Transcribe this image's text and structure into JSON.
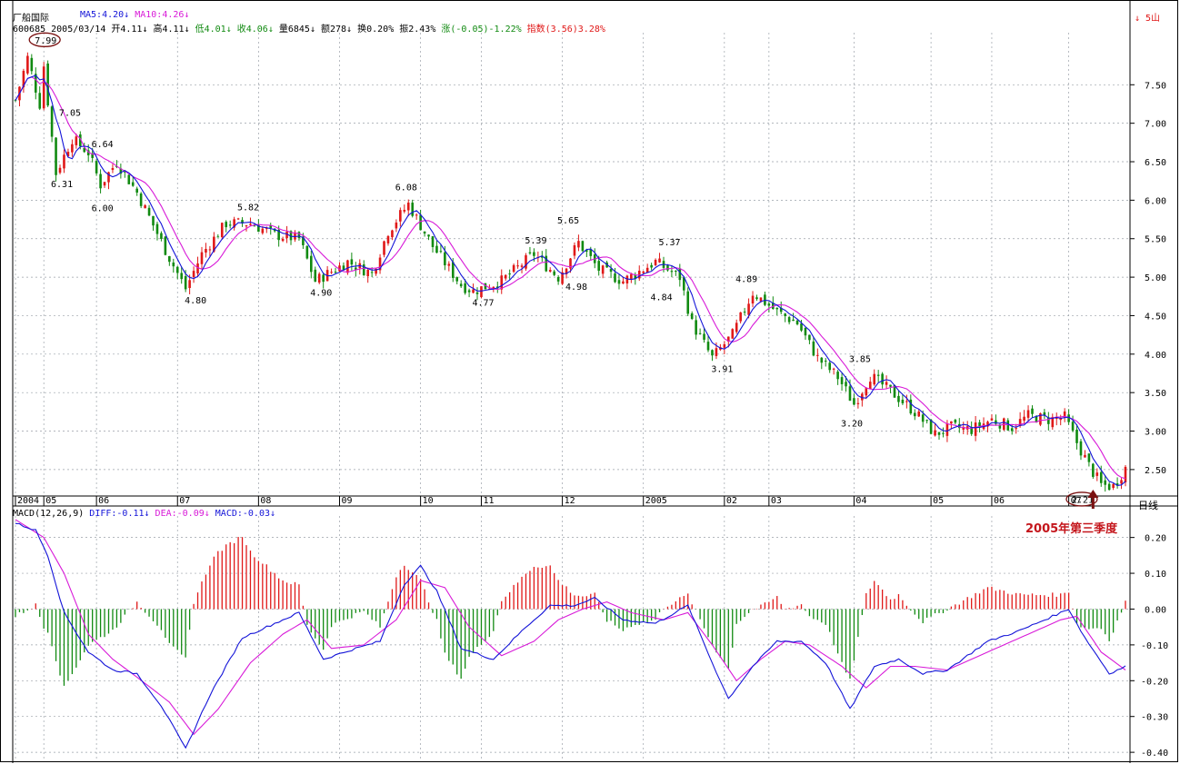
{
  "header": {
    "title": "厂船国际",
    "ma_line": [
      {
        "text": "MA5:4.20↓",
        "color": "#1414d8"
      },
      {
        "text": "MA10:4.26↓",
        "color": "#d81ad8"
      }
    ],
    "info_line": [
      {
        "text": "600685 2005/03/14",
        "color": "#000000"
      },
      {
        "text": "开4.11↓",
        "color": "#000000"
      },
      {
        "text": "高4.11↓",
        "color": "#000000"
      },
      {
        "text": "低4.01↓",
        "color": "#118a11"
      },
      {
        "text": "收4.06↓",
        "color": "#118a11"
      },
      {
        "text": "量6845↓",
        "color": "#000000"
      },
      {
        "text": "额278↓",
        "color": "#000000"
      },
      {
        "text": "换0.20%",
        "color": "#000000"
      },
      {
        "text": "振2.43%",
        "color": "#000000"
      },
      {
        "text": "涨(-0.05)-1.22%",
        "color": "#118a11"
      },
      {
        "text": "指数(3.56)3.28%",
        "color": "#e01818"
      }
    ],
    "corner_label": "↓ 5山"
  },
  "macd_header": [
    {
      "text": "MACD(12,26,9)",
      "color": "#000000"
    },
    {
      "text": "DIFF:-0.11↓",
      "color": "#1414d8"
    },
    {
      "text": "DEA:-0.09↓",
      "color": "#d81ad8"
    },
    {
      "text": "MACD:-0.03↓",
      "color": "#1414d8"
    }
  ],
  "annotation": "2005年第三季度",
  "period_label": "日线",
  "colors": {
    "up": "#e01818",
    "down": "#118a11",
    "ma5": "#1414d8",
    "ma10": "#d81ad8",
    "diff": "#1414d8",
    "dea": "#d81ad8",
    "circle": "#7a1010",
    "arrow": "#7a1010",
    "grid": "#9aa0a8"
  },
  "chart_data": [
    {
      "type": "candlestick",
      "y_ticks": [
        "7.50",
        "7.00",
        "6.50",
        "6.00",
        "5.50",
        "5.00",
        "4.50",
        "4.00",
        "3.50",
        "3.00",
        "2.50"
      ],
      "ylim": [
        2.18,
        8.2
      ],
      "x_ticks": [
        {
          "label": "2004",
          "t": 0
        },
        {
          "label": "05",
          "t": 7
        },
        {
          "label": "06",
          "t": 20
        },
        {
          "label": "07",
          "t": 40
        },
        {
          "label": "08",
          "t": 60
        },
        {
          "label": "09",
          "t": 80
        },
        {
          "label": "10",
          "t": 100
        },
        {
          "label": "11",
          "t": 115
        },
        {
          "label": "12",
          "t": 135
        },
        {
          "label": "2005",
          "t": 155
        },
        {
          "label": "02",
          "t": 175
        },
        {
          "label": "03",
          "t": 186
        },
        {
          "label": "04",
          "t": 207
        },
        {
          "label": "05",
          "t": 226
        },
        {
          "label": "06",
          "t": 241
        },
        {
          "label": "07",
          "t": 260
        }
      ],
      "x_range": [
        0,
        274
      ],
      "price_path": [
        [
          0,
          7.3
        ],
        [
          3,
          7.85
        ],
        [
          6,
          7.25
        ],
        [
          7,
          7.75
        ],
        [
          10,
          6.35
        ],
        [
          14,
          6.8
        ],
        [
          18,
          6.62
        ],
        [
          21,
          6.2
        ],
        [
          25,
          6.5
        ],
        [
          30,
          6.1
        ],
        [
          38,
          5.25
        ],
        [
          42,
          4.85
        ],
        [
          46,
          5.3
        ],
        [
          52,
          5.7
        ],
        [
          58,
          5.7
        ],
        [
          64,
          5.55
        ],
        [
          70,
          5.5
        ],
        [
          74,
          4.95
        ],
        [
          82,
          5.2
        ],
        [
          88,
          5.05
        ],
        [
          92,
          5.6
        ],
        [
          97,
          5.95
        ],
        [
          103,
          5.4
        ],
        [
          110,
          4.9
        ],
        [
          113,
          4.82
        ],
        [
          120,
          4.95
        ],
        [
          128,
          5.3
        ],
        [
          134,
          5.0
        ],
        [
          139,
          5.45
        ],
        [
          144,
          5.1
        ],
        [
          150,
          4.95
        ],
        [
          158,
          5.2
        ],
        [
          164,
          5.0
        ],
        [
          167,
          4.4
        ],
        [
          172,
          3.95
        ],
        [
          177,
          4.25
        ],
        [
          182,
          4.8
        ],
        [
          188,
          4.55
        ],
        [
          193,
          4.4
        ],
        [
          198,
          3.95
        ],
        [
          203,
          3.7
        ],
        [
          207,
          3.35
        ],
        [
          211,
          3.72
        ],
        [
          216,
          3.52
        ],
        [
          222,
          3.25
        ],
        [
          227,
          2.96
        ],
        [
          231,
          3.05
        ],
        [
          236,
          3.02
        ],
        [
          241,
          3.15
        ],
        [
          246,
          3.05
        ],
        [
          250,
          3.2
        ],
        [
          255,
          3.15
        ],
        [
          259,
          3.18
        ],
        [
          262,
          2.85
        ],
        [
          265,
          2.55
        ],
        [
          268,
          2.3
        ],
        [
          271,
          2.28
        ],
        [
          274,
          2.52
        ]
      ],
      "price_labels": [
        {
          "text": "7.99",
          "t": 7,
          "price": 7.99,
          "circled": true
        },
        {
          "text": "7.05",
          "t": 13,
          "price": 7.05
        },
        {
          "text": "6.64",
          "t": 21,
          "price": 6.64
        },
        {
          "text": "6.31",
          "t": 11,
          "price": 6.31,
          "below": true
        },
        {
          "text": "6.00",
          "t": 21,
          "price": 6.0,
          "below": true
        },
        {
          "text": "4.80",
          "t": 44,
          "price": 4.8,
          "below": true
        },
        {
          "text": "5.82",
          "t": 57,
          "price": 5.82
        },
        {
          "text": "4.90",
          "t": 75,
          "price": 4.9,
          "below": true
        },
        {
          "text": "6.08",
          "t": 96,
          "price": 6.08
        },
        {
          "text": "4.77",
          "t": 115,
          "price": 4.77,
          "below": true
        },
        {
          "text": "5.39",
          "t": 128,
          "price": 5.39
        },
        {
          "text": "5.65",
          "t": 136,
          "price": 5.65
        },
        {
          "text": "4.98",
          "t": 138,
          "price": 4.98,
          "below": true
        },
        {
          "text": "5.37",
          "t": 161,
          "price": 5.37
        },
        {
          "text": "4.84",
          "t": 159,
          "price": 4.84,
          "below": true
        },
        {
          "text": "4.89",
          "t": 180,
          "price": 4.89
        },
        {
          "text": "3.91",
          "t": 174,
          "price": 3.91,
          "below": true
        },
        {
          "text": "3.85",
          "t": 208,
          "price": 3.85
        },
        {
          "text": "3.20",
          "t": 206,
          "price": 3.2,
          "below": true
        },
        {
          "text": "2.21",
          "t": 263,
          "price": 2.21,
          "below": true,
          "circled": true
        }
      ]
    },
    {
      "type": "macd",
      "y_ticks": [
        "0.20",
        "0.10",
        "0.00",
        "-0.10",
        "-0.20",
        "-0.30",
        "-0.40"
      ],
      "ylim": [
        -0.42,
        0.26
      ],
      "diff": [
        [
          0,
          0.24
        ],
        [
          5,
          0.22
        ],
        [
          8,
          0.15
        ],
        [
          12,
          -0.01
        ],
        [
          18,
          -0.12
        ],
        [
          24,
          -0.17
        ],
        [
          30,
          -0.18
        ],
        [
          36,
          -0.27
        ],
        [
          42,
          -0.39
        ],
        [
          48,
          -0.24
        ],
        [
          56,
          -0.08
        ],
        [
          64,
          -0.04
        ],
        [
          70,
          -0.01
        ],
        [
          76,
          -0.14
        ],
        [
          84,
          -0.11
        ],
        [
          90,
          -0.09
        ],
        [
          96,
          0.07
        ],
        [
          100,
          0.12
        ],
        [
          104,
          0.05
        ],
        [
          110,
          -0.11
        ],
        [
          118,
          -0.14
        ],
        [
          126,
          -0.05
        ],
        [
          132,
          0.01
        ],
        [
          138,
          0.01
        ],
        [
          143,
          0.03
        ],
        [
          150,
          -0.03
        ],
        [
          158,
          -0.04
        ],
        [
          166,
          0.01
        ],
        [
          172,
          -0.15
        ],
        [
          176,
          -0.25
        ],
        [
          182,
          -0.16
        ],
        [
          188,
          -0.09
        ],
        [
          194,
          -0.09
        ],
        [
          200,
          -0.15
        ],
        [
          206,
          -0.28
        ],
        [
          212,
          -0.16
        ],
        [
          218,
          -0.14
        ],
        [
          224,
          -0.18
        ],
        [
          230,
          -0.17
        ],
        [
          240,
          -0.09
        ],
        [
          248,
          -0.06
        ],
        [
          256,
          -0.02
        ],
        [
          260,
          0.0
        ],
        [
          264,
          -0.08
        ],
        [
          270,
          -0.18
        ],
        [
          274,
          -0.16
        ]
      ],
      "dea": [
        [
          0,
          0.25
        ],
        [
          7,
          0.2
        ],
        [
          12,
          0.1
        ],
        [
          18,
          -0.07
        ],
        [
          24,
          -0.14
        ],
        [
          30,
          -0.19
        ],
        [
          38,
          -0.26
        ],
        [
          44,
          -0.35
        ],
        [
          50,
          -0.28
        ],
        [
          58,
          -0.15
        ],
        [
          66,
          -0.07
        ],
        [
          72,
          -0.03
        ],
        [
          78,
          -0.11
        ],
        [
          86,
          -0.1
        ],
        [
          94,
          -0.03
        ],
        [
          100,
          0.08
        ],
        [
          106,
          0.06
        ],
        [
          112,
          -0.05
        ],
        [
          120,
          -0.13
        ],
        [
          128,
          -0.09
        ],
        [
          134,
          -0.03
        ],
        [
          140,
          0.0
        ],
        [
          146,
          0.02
        ],
        [
          152,
          -0.01
        ],
        [
          160,
          -0.03
        ],
        [
          166,
          -0.01
        ],
        [
          172,
          -0.1
        ],
        [
          178,
          -0.2
        ],
        [
          184,
          -0.14
        ],
        [
          190,
          -0.09
        ],
        [
          196,
          -0.1
        ],
        [
          204,
          -0.16
        ],
        [
          210,
          -0.22
        ],
        [
          216,
          -0.16
        ],
        [
          222,
          -0.16
        ],
        [
          230,
          -0.17
        ],
        [
          240,
          -0.12
        ],
        [
          250,
          -0.07
        ],
        [
          258,
          -0.03
        ],
        [
          262,
          -0.02
        ],
        [
          268,
          -0.12
        ],
        [
          274,
          -0.17
        ]
      ]
    }
  ]
}
